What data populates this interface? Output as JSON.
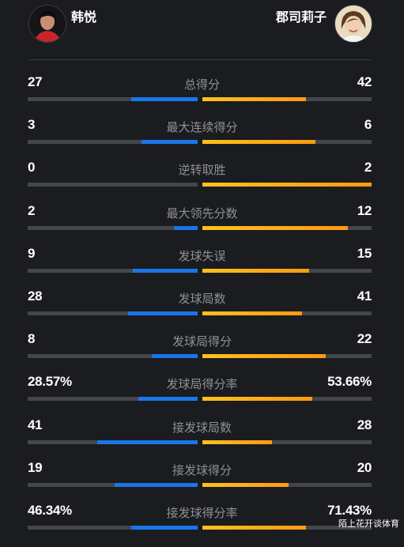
{
  "players": {
    "left": {
      "name": "韩悦",
      "avatar_icon": "player-portrait-icon"
    },
    "right": {
      "name": "郡司莉子",
      "avatar_icon": "player-portrait-icon"
    }
  },
  "colors": {
    "left_bar": "#1976e8",
    "right_bar": "#ffb317",
    "track": "#45464b"
  },
  "stats": [
    {
      "label": "总得分",
      "left": "27",
      "right": "42",
      "left_ratio": 0.39,
      "right_ratio": 0.61
    },
    {
      "label": "最大连续得分",
      "left": "3",
      "right": "6",
      "left_ratio": 0.33,
      "right_ratio": 0.67
    },
    {
      "label": "逆转取胜",
      "left": "0",
      "right": "2",
      "left_ratio": 0.0,
      "right_ratio": 1.0
    },
    {
      "label": "最大领先分数",
      "left": "2",
      "right": "12",
      "left_ratio": 0.14,
      "right_ratio": 0.86
    },
    {
      "label": "发球失误",
      "left": "9",
      "right": "15",
      "left_ratio": 0.38,
      "right_ratio": 0.63
    },
    {
      "label": "发球局数",
      "left": "28",
      "right": "41",
      "left_ratio": 0.41,
      "right_ratio": 0.59
    },
    {
      "label": "发球局得分",
      "left": "8",
      "right": "22",
      "left_ratio": 0.27,
      "right_ratio": 0.73
    },
    {
      "label": "发球局得分率",
      "left": "28.57%",
      "right": "53.66%",
      "left_ratio": 0.35,
      "right_ratio": 0.65
    },
    {
      "label": "接发球局数",
      "left": "41",
      "right": "28",
      "left_ratio": 0.59,
      "right_ratio": 0.41
    },
    {
      "label": "接发球得分",
      "left": "19",
      "right": "20",
      "left_ratio": 0.49,
      "right_ratio": 0.51
    },
    {
      "label": "接发球得分率",
      "left": "46.34%",
      "right": "71.43%",
      "left_ratio": 0.39,
      "right_ratio": 0.61
    }
  ],
  "watermark": "陌上花开谈体育"
}
